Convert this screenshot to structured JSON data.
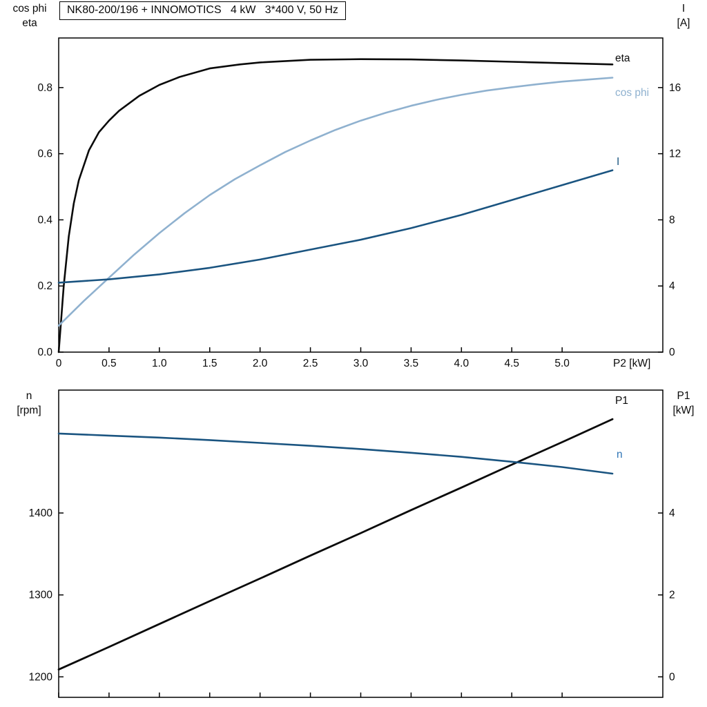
{
  "title": "NK80-200/196 + INNOMOTICS   4 kW   3*400 V, 50 Hz",
  "labels": {
    "top_left_axis": [
      "cos phi",
      "eta"
    ],
    "top_right_axis": [
      "I",
      "[A]"
    ],
    "bottom_left_axis": [
      "n",
      "[rpm]"
    ],
    "bottom_right_axis": [
      "P1",
      "[kW]"
    ],
    "x_axis_title": "P2 [kW]",
    "curve_eta": "eta",
    "curve_cosphi": "cos phi",
    "curve_current": "I",
    "curve_p1": "P1",
    "curve_n": "n"
  },
  "colors": {
    "black_curve": "#0a0a0a",
    "cosphi_curve": "#8fb1cf",
    "current_curve": "#1a5480",
    "n_curve": "#1a5480",
    "n_label": "#2e74b5",
    "frame": "#000000"
  },
  "chart_data": [
    {
      "type": "line",
      "panel": "top",
      "title": "NK80-200/196 + INNOMOTICS   4 kW   3*400 V, 50 Hz",
      "xlabel": "P2 [kW]",
      "xlim": [
        0,
        6
      ],
      "x_ticks": [
        0,
        0.5,
        1.0,
        1.5,
        2.0,
        2.5,
        3.0,
        3.5,
        4.0,
        4.5,
        5.0
      ],
      "x_tick_labels": [
        "0",
        "0.5",
        "1.0",
        "1.5",
        "2.0",
        "2.5",
        "3.0",
        "3.5",
        "4.0",
        "4.5",
        "5.0"
      ],
      "left_axis": {
        "label": "cos phi / eta",
        "lim": [
          0,
          0.95
        ],
        "ticks": [
          0,
          0.2,
          0.4,
          0.6,
          0.8
        ],
        "tick_labels": [
          "0.0",
          "0.2",
          "0.4",
          "0.6",
          "0.8"
        ]
      },
      "right_axis": {
        "label": "I [A]",
        "lim": [
          0,
          19
        ],
        "ticks": [
          0,
          4,
          8,
          12,
          16
        ],
        "tick_labels": [
          "0",
          "4",
          "8",
          "12",
          "16"
        ]
      },
      "grid": false,
      "legend_position": "right-of-curves",
      "series": [
        {
          "name": "eta",
          "axis": "left",
          "color": "#0a0a0a",
          "width": 2.6,
          "points": [
            [
              0,
              0
            ],
            [
              0.05,
              0.2
            ],
            [
              0.1,
              0.35
            ],
            [
              0.15,
              0.45
            ],
            [
              0.2,
              0.52
            ],
            [
              0.3,
              0.61
            ],
            [
              0.4,
              0.665
            ],
            [
              0.5,
              0.7
            ],
            [
              0.6,
              0.73
            ],
            [
              0.8,
              0.775
            ],
            [
              1,
              0.808
            ],
            [
              1.2,
              0.832
            ],
            [
              1.5,
              0.858
            ],
            [
              1.8,
              0.87
            ],
            [
              2,
              0.876
            ],
            [
              2.5,
              0.884
            ],
            [
              3,
              0.886
            ],
            [
              3.5,
              0.885
            ],
            [
              4,
              0.882
            ],
            [
              4.5,
              0.878
            ],
            [
              5,
              0.874
            ],
            [
              5.5,
              0.87
            ]
          ]
        },
        {
          "name": "cos phi",
          "axis": "left",
          "color": "#8fb1cf",
          "width": 2.6,
          "points": [
            [
              0,
              0.08
            ],
            [
              0.25,
              0.155
            ],
            [
              0.5,
              0.225
            ],
            [
              0.75,
              0.295
            ],
            [
              1,
              0.36
            ],
            [
              1.25,
              0.42
            ],
            [
              1.5,
              0.475
            ],
            [
              1.75,
              0.523
            ],
            [
              2,
              0.565
            ],
            [
              2.25,
              0.605
            ],
            [
              2.5,
              0.64
            ],
            [
              2.75,
              0.672
            ],
            [
              3,
              0.7
            ],
            [
              3.25,
              0.724
            ],
            [
              3.5,
              0.745
            ],
            [
              3.75,
              0.763
            ],
            [
              4,
              0.778
            ],
            [
              4.25,
              0.791
            ],
            [
              4.5,
              0.801
            ],
            [
              4.75,
              0.81
            ],
            [
              5,
              0.818
            ],
            [
              5.25,
              0.824
            ],
            [
              5.5,
              0.83
            ]
          ]
        },
        {
          "name": "I",
          "axis": "right",
          "color": "#1a5480",
          "width": 2.6,
          "points": [
            [
              0,
              4.2
            ],
            [
              0.5,
              4.4
            ],
            [
              1,
              4.7
            ],
            [
              1.5,
              5.1
            ],
            [
              2,
              5.6
            ],
            [
              2.5,
              6.2
            ],
            [
              3,
              6.8
            ],
            [
              3.5,
              7.5
            ],
            [
              4,
              8.3
            ],
            [
              4.5,
              9.2
            ],
            [
              5,
              10.1
            ],
            [
              5.5,
              11
            ]
          ]
        }
      ]
    },
    {
      "type": "line",
      "panel": "bottom",
      "xlabel": "",
      "xlim": [
        0,
        6
      ],
      "x_ticks": [
        0,
        0.5,
        1.0,
        1.5,
        2.0,
        2.5,
        3.0,
        3.5,
        4.0,
        4.5,
        5.0
      ],
      "x_tick_labels": [],
      "left_axis": {
        "label": "n [rpm]",
        "lim": [
          1175,
          1550
        ],
        "ticks": [
          1200,
          1300,
          1400
        ],
        "tick_labels": [
          "1200",
          "1300",
          "1400"
        ]
      },
      "right_axis": {
        "label": "P1 [kW]",
        "lim": [
          -0.5,
          7.0
        ],
        "ticks": [
          0,
          2,
          4
        ],
        "tick_labels": [
          "0",
          "2",
          "4"
        ]
      },
      "grid": false,
      "series": [
        {
          "name": "P1",
          "axis": "right",
          "color": "#0a0a0a",
          "width": 2.8,
          "points": [
            [
              0,
              0.18
            ],
            [
              0.5,
              0.73
            ],
            [
              1,
              1.29
            ],
            [
              1.5,
              1.85
            ],
            [
              2,
              2.4
            ],
            [
              2.5,
              2.96
            ],
            [
              3,
              3.51
            ],
            [
              3.5,
              4.07
            ],
            [
              4,
              4.62
            ],
            [
              4.5,
              5.18
            ],
            [
              5,
              5.73
            ],
            [
              5.5,
              6.29
            ]
          ]
        },
        {
          "name": "n",
          "axis": "left",
          "color": "#1a5480",
          "width": 2.6,
          "points": [
            [
              0,
              1497
            ],
            [
              0.5,
              1494.5
            ],
            [
              1,
              1492
            ],
            [
              1.5,
              1489
            ],
            [
              2,
              1485.5
            ],
            [
              2.5,
              1482
            ],
            [
              3,
              1478
            ],
            [
              3.5,
              1473.5
            ],
            [
              4,
              1468.5
            ],
            [
              4.5,
              1462.5
            ],
            [
              5,
              1456
            ],
            [
              5.5,
              1448
            ]
          ]
        }
      ]
    }
  ]
}
